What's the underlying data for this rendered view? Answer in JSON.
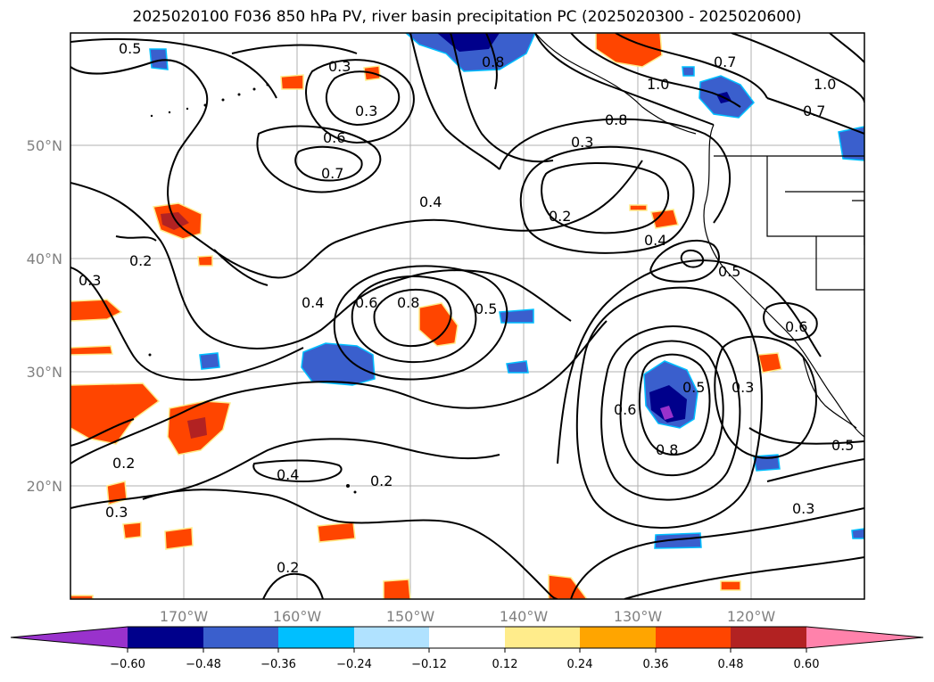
{
  "title": "2025020100 F036 850 hPa PV, river basin precipitation PC (2025020300 - 2025020600)",
  "map": {
    "lon_labels": [
      "170°W",
      "160°W",
      "150°W",
      "140°W",
      "130°W",
      "120°W"
    ],
    "lat_labels": [
      "20°N",
      "30°N",
      "40°N",
      "50°N"
    ]
  },
  "contour_labels": [
    "0.5",
    "0.3",
    "0.6",
    "0.7",
    "0.4",
    "0.2",
    "0.8",
    "0.3",
    "0.2",
    "0.4",
    "0.6",
    "0.8",
    "0.5",
    "0.3",
    "0.5",
    "0.6",
    "0.4",
    "0.6",
    "0.5",
    "0.8",
    "0.3",
    "0.5",
    "0.2",
    "0.4",
    "0.3",
    "0.2",
    "0.3",
    "0.2",
    "0.7",
    "1.0",
    "1.0",
    "0.7",
    "0.8",
    "0.3"
  ],
  "colorbar": {
    "ticks": [
      "−0.60",
      "−0.48",
      "−0.36",
      "−0.24",
      "−0.12",
      "0.12",
      "0.24",
      "0.36",
      "0.48",
      "0.60"
    ],
    "colors": {
      "under": "#9932cc",
      "b1": "#00008b",
      "b2": "#3a5fcd",
      "b3": "#00bfff",
      "b4": "#b0e2ff",
      "b5": "#ffffff",
      "b6": "#ffec8b",
      "b7": "#ffa500",
      "b8": "#ff4500",
      "b9": "#b22222",
      "over": "#ff82ab"
    }
  }
}
